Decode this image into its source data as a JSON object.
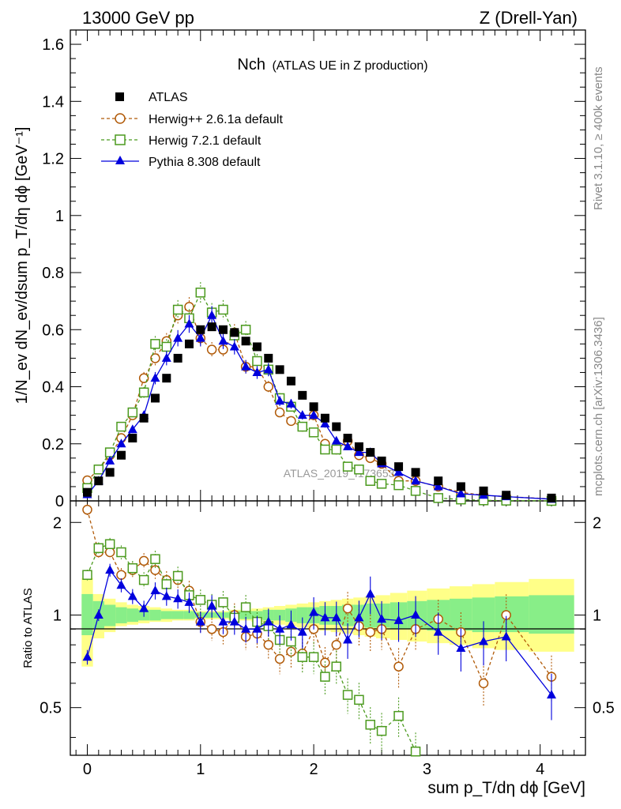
{
  "header": {
    "left": "13000 GeV pp",
    "right": "Z (Drell-Yan)"
  },
  "side_labels": {
    "rivet": "Rivet 3.1.10, ≥ 400k events",
    "mcplots": "mcplots.cern.ch [arXiv:1306.3436]"
  },
  "watermark": "ATLAS_2019_I1736531",
  "chart_data": {
    "type": "scatter",
    "title_main": "Nch",
    "title_sub": "(ATLAS UE in Z production)",
    "ylabel_main": "1/N_ev dN_ev/dsum p_T/dη dϕ [GeV⁻¹]",
    "ylabel_ratio": "Ratio to ATLAS",
    "xlabel": "sum p_T/dη dϕ [GeV]",
    "xlim": [
      -0.15,
      4.4
    ],
    "ylim_main": [
      0,
      1.65
    ],
    "ylim_ratio": [
      0.35,
      2.35
    ],
    "x_ticks": [
      "0",
      "1",
      "2",
      "3",
      "4"
    ],
    "y_ticks_main": [
      "0",
      "0.2",
      "0.4",
      "0.6",
      "0.8",
      "1",
      "1.2",
      "1.4",
      "1.6"
    ],
    "y_ticks_ratio": [
      "0.5",
      "1",
      "2"
    ],
    "x": [
      0.0,
      0.1,
      0.2,
      0.3,
      0.4,
      0.5,
      0.6,
      0.7,
      0.8,
      0.9,
      1.0,
      1.1,
      1.2,
      1.3,
      1.4,
      1.5,
      1.6,
      1.7,
      1.8,
      1.9,
      2.0,
      2.1,
      2.2,
      2.3,
      2.4,
      2.5,
      2.6,
      2.75,
      2.9,
      3.1,
      3.3,
      3.5,
      3.7,
      4.1
    ],
    "series": [
      {
        "name": "ATLAS",
        "color": "#000000",
        "marker": "square-filled",
        "values": [
          0.03,
          0.07,
          0.1,
          0.16,
          0.22,
          0.29,
          0.36,
          0.43,
          0.5,
          0.55,
          0.6,
          0.61,
          0.6,
          0.59,
          0.56,
          0.54,
          0.5,
          0.46,
          0.42,
          0.37,
          0.33,
          0.29,
          0.26,
          0.22,
          0.19,
          0.17,
          0.14,
          0.12,
          0.1,
          0.07,
          0.05,
          0.035,
          0.02,
          0.01
        ],
        "ratio": []
      },
      {
        "name": "Herwig++ 2.6.1a default",
        "color": "#b15a08",
        "marker": "circle-open",
        "dashed": true,
        "values": [
          0.072,
          0.11,
          0.16,
          0.22,
          0.3,
          0.43,
          0.5,
          0.56,
          0.65,
          0.68,
          0.57,
          0.53,
          0.53,
          0.59,
          0.47,
          0.47,
          0.4,
          0.31,
          0.28,
          0.26,
          0.3,
          0.2,
          0.18,
          0.21,
          0.16,
          0.15,
          0.13,
          0.07,
          0.07,
          0.05,
          0.03,
          0.02,
          0.015,
          0.007
        ],
        "ratio": [
          2.2,
          1.6,
          1.6,
          1.35,
          1.4,
          1.5,
          1.4,
          1.3,
          1.3,
          1.2,
          0.95,
          0.9,
          0.88,
          1.0,
          0.85,
          0.87,
          0.8,
          0.72,
          0.76,
          0.75,
          0.9,
          0.7,
          0.8,
          1.05,
          0.92,
          0.88,
          0.9,
          0.68,
          0.9,
          0.97,
          0.88,
          0.6,
          1.0,
          0.63
        ]
      },
      {
        "name": "Herwig 7.2.1 default",
        "color": "#4b9a1e",
        "marker": "square-open",
        "dashed": true,
        "values": [
          0.045,
          0.11,
          0.17,
          0.26,
          0.31,
          0.38,
          0.55,
          0.54,
          0.67,
          0.64,
          0.73,
          0.66,
          0.67,
          0.58,
          0.6,
          0.49,
          0.46,
          0.36,
          0.33,
          0.26,
          0.24,
          0.18,
          0.18,
          0.12,
          0.11,
          0.07,
          0.06,
          0.055,
          0.035,
          0.01,
          0.005,
          0.002,
          0.001,
          0.0
        ],
        "ratio": [
          1.35,
          1.65,
          1.7,
          1.6,
          1.42,
          1.3,
          1.52,
          1.26,
          1.34,
          1.16,
          1.12,
          1.08,
          1.1,
          0.98,
          1.06,
          0.95,
          0.92,
          0.83,
          0.82,
          0.73,
          0.73,
          0.63,
          0.68,
          0.55,
          0.53,
          0.44,
          0.42,
          0.47,
          0.36
        ]
      },
      {
        "name": "Pythia 8.308 default",
        "color": "#0000dd",
        "marker": "triangle-filled",
        "dashed": false,
        "values": [
          0.022,
          0.07,
          0.14,
          0.2,
          0.25,
          0.3,
          0.43,
          0.5,
          0.57,
          0.62,
          0.57,
          0.65,
          0.56,
          0.54,
          0.47,
          0.45,
          0.46,
          0.35,
          0.34,
          0.3,
          0.3,
          0.27,
          0.21,
          0.19,
          0.17,
          0.17,
          0.13,
          0.1,
          0.07,
          0.05,
          0.025,
          0.02,
          0.015,
          0.006
        ],
        "ratio": [
          0.73,
          1.0,
          1.4,
          1.25,
          1.15,
          1.05,
          1.2,
          1.15,
          1.13,
          1.1,
          0.95,
          1.07,
          0.95,
          0.95,
          0.9,
          0.9,
          0.95,
          0.9,
          0.93,
          0.88,
          1.02,
          0.98,
          0.98,
          0.83,
          0.98,
          1.17,
          0.97,
          0.96,
          1.0,
          0.88,
          0.78,
          0.82,
          0.85,
          0.55
        ]
      }
    ],
    "ratio_band_yellow": {
      "lower": [
        0.68,
        0.84,
        0.88,
        0.92,
        0.93,
        0.94,
        0.95,
        0.95,
        0.96,
        0.96,
        0.97,
        0.97,
        0.97,
        0.96,
        0.96,
        0.95,
        0.94,
        0.93,
        0.92,
        0.91,
        0.9,
        0.89,
        0.88,
        0.87,
        0.86,
        0.85,
        0.84,
        0.83,
        0.82,
        0.81,
        0.8,
        0.78,
        0.77,
        0.76
      ],
      "upper": [
        1.32,
        1.17,
        1.13,
        1.1,
        1.08,
        1.07,
        1.06,
        1.05,
        1.04,
        1.04,
        1.03,
        1.03,
        1.03,
        1.04,
        1.04,
        1.05,
        1.06,
        1.07,
        1.08,
        1.09,
        1.1,
        1.11,
        1.12,
        1.13,
        1.14,
        1.15,
        1.16,
        1.18,
        1.2,
        1.22,
        1.24,
        1.26,
        1.28,
        1.31
      ]
    },
    "ratio_band_green": {
      "lower": [
        0.86,
        0.9,
        0.92,
        0.94,
        0.95,
        0.96,
        0.96,
        0.97,
        0.97,
        0.97,
        0.98,
        0.98,
        0.98,
        0.97,
        0.97,
        0.97,
        0.96,
        0.96,
        0.95,
        0.94,
        0.94,
        0.93,
        0.93,
        0.92,
        0.92,
        0.91,
        0.91,
        0.9,
        0.9,
        0.89,
        0.89,
        0.88,
        0.88,
        0.87
      ],
      "upper": [
        1.17,
        1.11,
        1.08,
        1.06,
        1.05,
        1.04,
        1.04,
        1.03,
        1.03,
        1.03,
        1.02,
        1.02,
        1.02,
        1.03,
        1.03,
        1.03,
        1.04,
        1.04,
        1.05,
        1.06,
        1.06,
        1.07,
        1.07,
        1.08,
        1.08,
        1.09,
        1.09,
        1.1,
        1.11,
        1.12,
        1.13,
        1.14,
        1.15,
        1.16
      ]
    }
  }
}
